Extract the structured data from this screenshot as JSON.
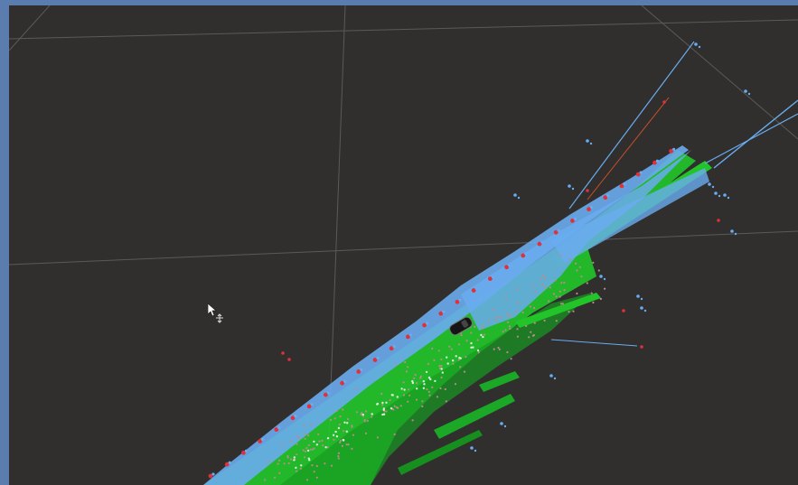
{
  "window": {
    "frame_color": "#5b7cae",
    "viewport_background": "#302f2d"
  },
  "scene": {
    "description_icons": [
      "move-cursor-icon",
      "vehicle-marker-icon"
    ],
    "colors": {
      "grid": "#5a5a5a",
      "ground_points": "#22c42a",
      "obstacle_points": "#6aacf0",
      "boundary_points": "#e0303a",
      "noise_points": "#b98c8c",
      "vehicle": "#151515"
    }
  }
}
